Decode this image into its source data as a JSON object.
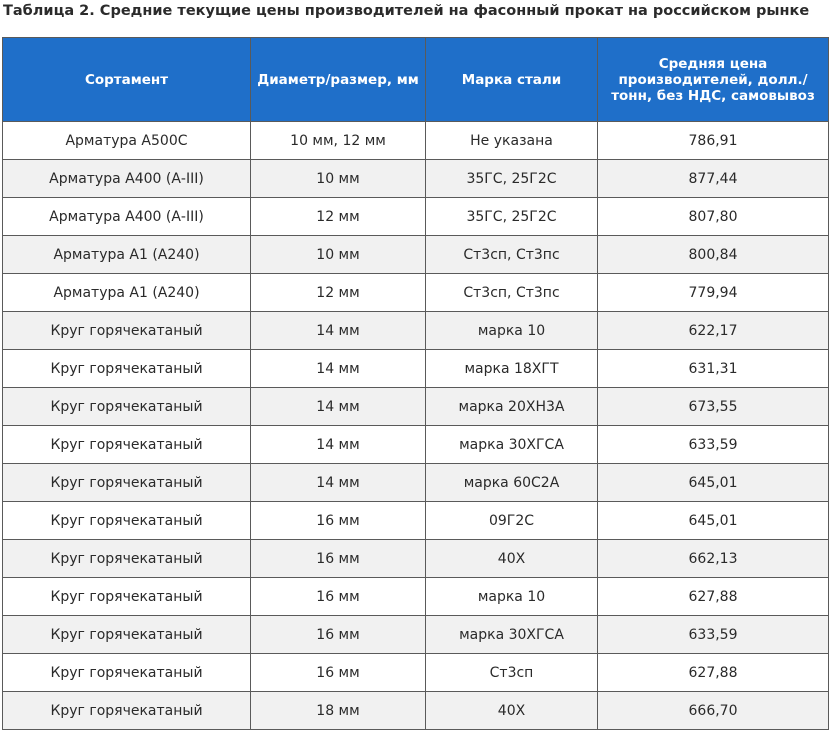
{
  "caption": "Таблица 2. Средние текущие цены производителей на фасонный прокат на российском рынке",
  "colors": {
    "header_bg": "#1f6fc9",
    "header_text": "#ffffff",
    "stripe": "#f1f1f1",
    "border": "#5a5a5a"
  },
  "table": {
    "headers": [
      "Сортамент",
      "Диаметр/размер, мм",
      "Марка стали",
      "Средняя цена производителей, долл./тонн, без НДС, самовывоз"
    ],
    "rows": [
      [
        "Арматура А500С",
        "10 мм, 12 мм",
        "Не указана",
        "786,91"
      ],
      [
        "Арматура А400 (А-III)",
        "10 мм",
        "35ГС, 25Г2С",
        "877,44"
      ],
      [
        "Арматура А400 (А-III)",
        "12 мм",
        "35ГС, 25Г2С",
        "807,80"
      ],
      [
        "Арматура А1 (А240)",
        "10 мм",
        "Ст3сп, Ст3пс",
        "800,84"
      ],
      [
        "Арматура А1 (А240)",
        "12 мм",
        "Ст3сп, Ст3пс",
        "779,94"
      ],
      [
        "Круг горячекатаный",
        "14 мм",
        "марка 10",
        "622,17"
      ],
      [
        "Круг горячекатаный",
        "14 мм",
        "марка 18ХГТ",
        "631,31"
      ],
      [
        "Круг горячекатаный",
        "14 мм",
        "марка 20ХН3А",
        "673,55"
      ],
      [
        "Круг горячекатаный",
        "14 мм",
        "марка 30ХГСА",
        "633,59"
      ],
      [
        "Круг горячекатаный",
        "14 мм",
        "марка 60С2А",
        "645,01"
      ],
      [
        "Круг горячекатаный",
        "16 мм",
        "09Г2С",
        "645,01"
      ],
      [
        "Круг горячекатаный",
        "16 мм",
        "40Х",
        "662,13"
      ],
      [
        "Круг горячекатаный",
        "16 мм",
        "марка 10",
        "627,88"
      ],
      [
        "Круг горячекатаный",
        "16 мм",
        "марка 30ХГСА",
        "633,59"
      ],
      [
        "Круг горячекатаный",
        "16 мм",
        "Ст3сп",
        "627,88"
      ],
      [
        "Круг горячекатаный",
        "18 мм",
        "40Х",
        "666,70"
      ]
    ]
  }
}
